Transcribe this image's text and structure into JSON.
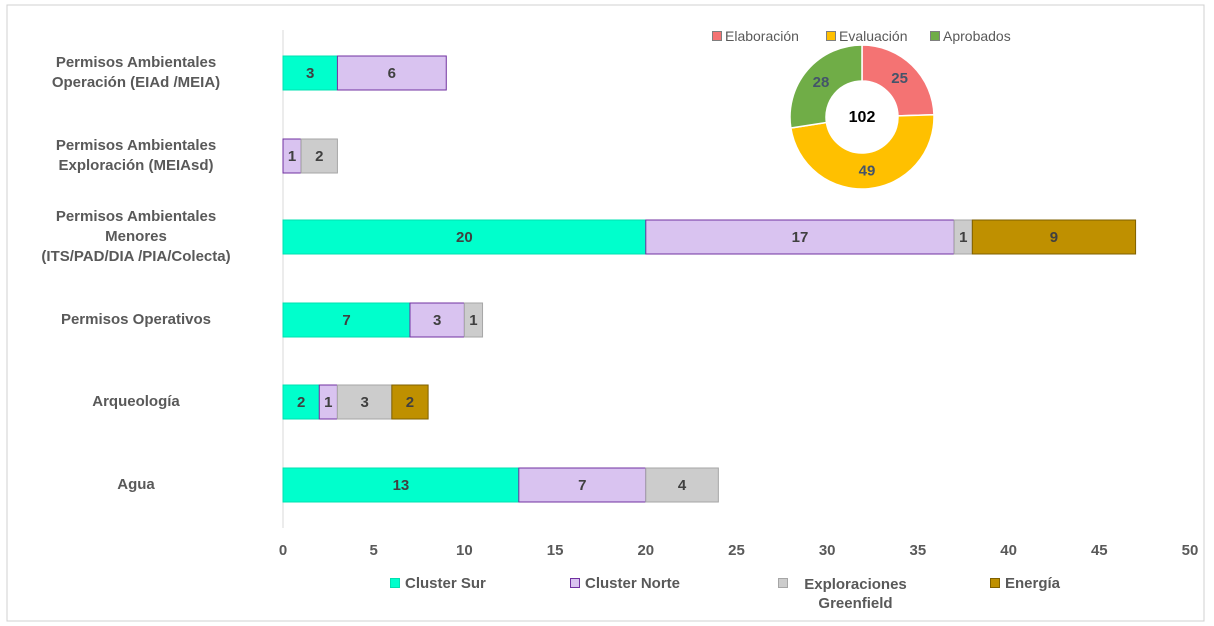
{
  "chart_data": [
    {
      "type": "stacked-barh",
      "categories": [
        "Permisos Ambientales\nOperación (EIAd /MEIA)",
        "Permisos Ambientales\nExploración (MEIAsd)",
        "Permisos Ambientales\nMenores\n(ITS/PAD/DIA /PIA/Colecta)",
        "Permisos Operativos",
        "Arqueología",
        "Agua"
      ],
      "series": [
        {
          "name": "Cluster Sur",
          "color": "#00ffcc",
          "border": "#00e0b0",
          "values": [
            3,
            null,
            20,
            7,
            2,
            13
          ]
        },
        {
          "name": "Cluster Norte",
          "color": "#d9c3f0",
          "border": "#7030a0",
          "values": [
            6,
            1,
            17,
            3,
            1,
            7
          ]
        },
        {
          "name": "Exploraciones Greenfield",
          "color": "#cccccc",
          "border": "#a6a6a6",
          "values": [
            null,
            2,
            1,
            1,
            3,
            4
          ]
        },
        {
          "name": "Energía",
          "color": "#bf9000",
          "border": "#7f6000",
          "values": [
            null,
            null,
            9,
            null,
            2,
            null
          ]
        }
      ],
      "xlim": [
        0,
        50
      ],
      "xticks": [
        0,
        5,
        10,
        15,
        20,
        25,
        30,
        35,
        40,
        45,
        50
      ],
      "legend": "bottom"
    },
    {
      "type": "donut",
      "categories": [
        "Elaboración",
        "Evaluación",
        "Aprobados"
      ],
      "values": [
        25,
        49,
        28
      ],
      "colors": [
        "#f47373",
        "#ffc000",
        "#70ad47"
      ],
      "total": 102,
      "legend": "top"
    }
  ]
}
